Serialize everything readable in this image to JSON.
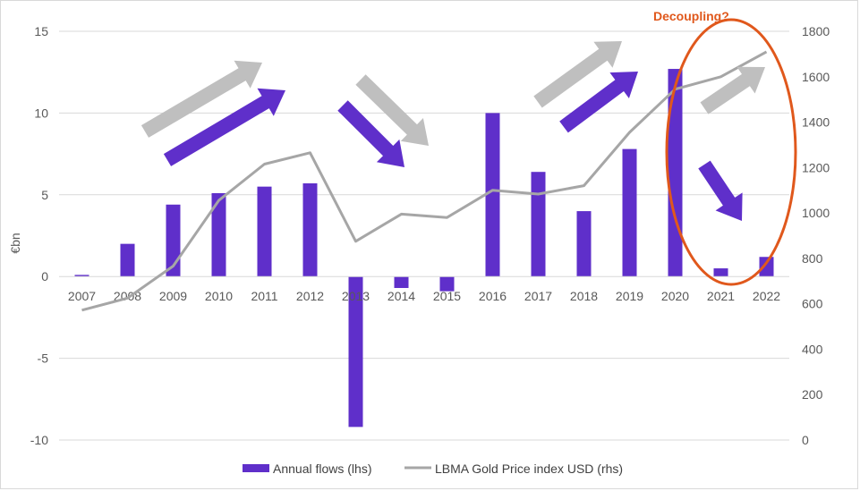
{
  "chart_data": {
    "type": "bar",
    "categories": [
      "2007",
      "2008",
      "2009",
      "2010",
      "2011",
      "2012",
      "2013",
      "2014",
      "2015",
      "2016",
      "2017",
      "2018",
      "2019",
      "2020",
      "2021",
      "2022"
    ],
    "series": [
      {
        "name": "Annual flows (lhs)",
        "type": "bar",
        "axis": "left",
        "color": "#5f2fca",
        "values": [
          0.1,
          2.0,
          4.4,
          5.1,
          5.5,
          5.7,
          -9.2,
          -0.7,
          -0.9,
          10.0,
          6.4,
          4.0,
          7.8,
          12.7,
          0.5,
          1.2
        ]
      },
      {
        "name": "LBMA Gold Price index USD (rhs)",
        "type": "line",
        "axis": "right",
        "color": "#a6a6a6",
        "values": [
          572,
          625,
          766,
          1055,
          1215,
          1265,
          875,
          995,
          980,
          1100,
          1083,
          1120,
          1355,
          1545,
          1600,
          1710
        ]
      }
    ],
    "ylabel": "€bn",
    "ylim": [
      -10,
      15
    ],
    "yticks": [
      "15",
      "10",
      "5",
      "0",
      "-5",
      "-10"
    ],
    "y2lim": [
      0,
      1800
    ],
    "y2ticks": [
      "1800",
      "1600",
      "1400",
      "1200",
      "1000",
      "800",
      "600",
      "400",
      "200",
      "0"
    ],
    "grid": true,
    "legend": "bottom",
    "annotation": "Decoupling?",
    "colors": {
      "arrow_gray": "#bfbfbf",
      "arrow_purple": "#5f2fca",
      "ellipse": "#e0581c",
      "grid": "#d9d9d9"
    }
  }
}
